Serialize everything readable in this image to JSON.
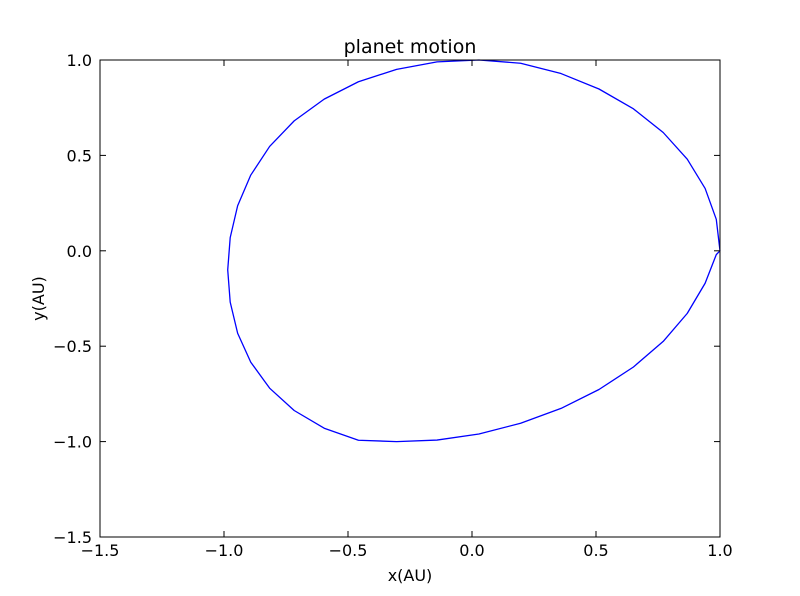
{
  "chart_data": {
    "type": "line",
    "title": "planet motion",
    "xlabel": "x(AU)",
    "ylabel": "y(AU)",
    "xlim": [
      -1.5,
      1.0
    ],
    "ylim": [
      -1.5,
      1.0
    ],
    "xticks": [
      -1.5,
      -1.0,
      -0.5,
      0.0,
      0.5,
      1.0
    ],
    "yticks": [
      -1.5,
      -1.0,
      -0.5,
      0.0,
      0.5,
      1.0
    ],
    "xtick_labels": [
      "−1.5",
      "−1.0",
      "−0.5",
      "0.0",
      "0.5",
      "1.0"
    ],
    "ytick_labels": [
      "−1.5",
      "−1.0",
      "−0.5",
      "0.0",
      "0.5",
      "1.0"
    ],
    "grid": false,
    "series": [
      {
        "color": "#0000ff",
        "x": [
          1.0,
          0.985,
          0.94,
          0.868,
          0.771,
          0.651,
          0.512,
          0.359,
          0.196,
          0.028,
          -0.141,
          -0.304,
          -0.458,
          -0.596,
          -0.717,
          -0.816,
          -0.892,
          -0.945,
          -0.975,
          -0.985,
          -0.975,
          -0.945,
          -0.892,
          -0.816,
          -0.717,
          -0.596,
          -0.458,
          -0.304,
          -0.141,
          0.028,
          0.196,
          0.359,
          0.512,
          0.651,
          0.771,
          0.868,
          0.94,
          0.985,
          1.0
        ],
        "y": [
          0.0,
          0.165,
          0.327,
          0.48,
          0.62,
          0.744,
          0.848,
          0.929,
          0.983,
          1.0,
          0.99,
          0.951,
          0.886,
          0.795,
          0.681,
          0.547,
          0.397,
          0.236,
          0.069,
          -0.1,
          -0.269,
          -0.432,
          -0.584,
          -0.72,
          -0.837,
          -0.93,
          -0.993,
          -1.0,
          -0.992,
          -0.96,
          -0.904,
          -0.826,
          -0.727,
          -0.609,
          -0.475,
          -0.328,
          -0.17,
          -0.02,
          0.0
        ]
      }
    ]
  }
}
